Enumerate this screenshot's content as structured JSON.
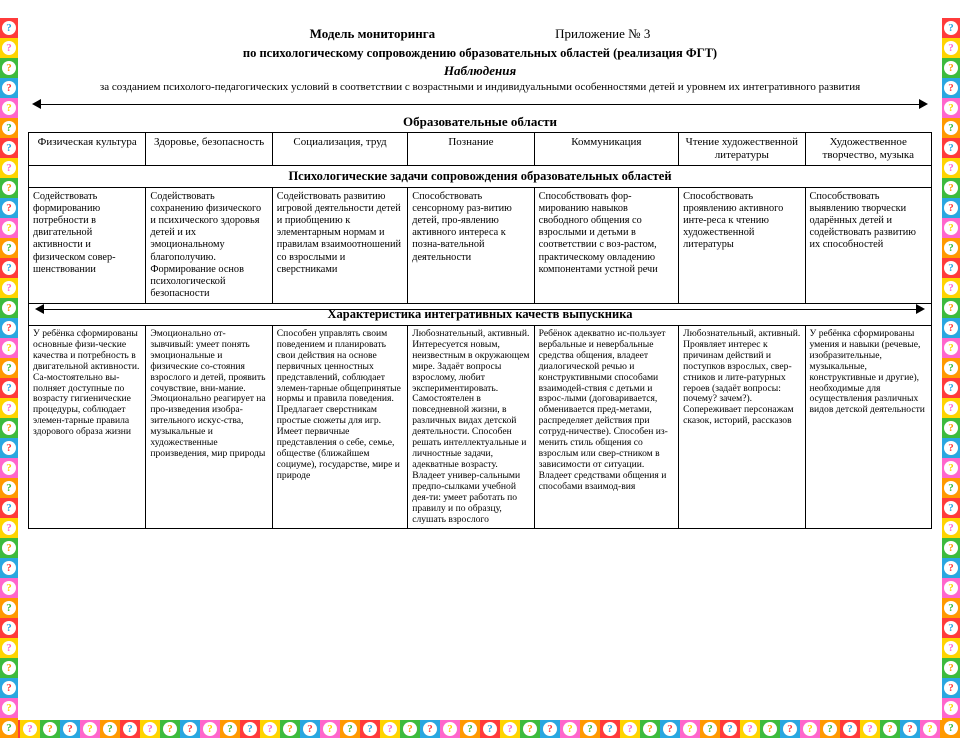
{
  "border": {
    "colors": [
      "#ff3b3b",
      "#ffd400",
      "#3dbb3d",
      "#2aa7e0",
      "#ff66cc",
      "#ff9900"
    ],
    "glyph": "?"
  },
  "header": {
    "title": "Модель мониторинга",
    "appendix": "Приложение № 3",
    "subtitle": "по психологическому сопровождению образовательных областей (реализация ФГТ)",
    "observation": "Наблюдения",
    "desc": "за созданием психолого-педагогических условий в соответствии с возрастными и индивидуальными особенностями детей и уровнем их интегративного развития"
  },
  "sections": {
    "areas": "Образовательные области",
    "tasks": "Психологические задачи сопровождения образовательных областей",
    "qualities": "Характеристика интегративных качеств выпускника"
  },
  "columns": [
    "Физическая культура",
    "Здоровье, безопасность",
    "Социализация, труд",
    "Познание",
    "Коммуникация",
    "Чтение художественной литературы",
    "Художественное творчество, музыка"
  ],
  "tasks": [
    "Содействовать формированию потребности в двигательной активности и физическом совер-шенствовании",
    "Содействовать сохранению физического и психического здоровья детей и их эмоциональному благополучию. Формирование основ психологической безопасности",
    "Содействовать развитию игровой деятельности детей и приобщению к элементарным нормам и правилам взаимоотношений со взрослыми и сверстниками",
    "Способствовать сенсорному раз-витию детей, про-явлению активного интереса к позна-вательной деятельности",
    "Способствовать фор-мированию навыков свободного общения со взрослыми и детьми в соответствии с воз-растом, практическому овладению компонентами устной речи",
    "Способствовать проявлению активного инте-реса к чтению художественной литературы",
    "Способствовать выявлению творчески одарённых детей и содействовать развитию их способностей"
  ],
  "qualities": [
    "У ребёнка сформированы основные физи-ческие качества и потребность в двигательной активности. Са-мостоятельно вы-полняет доступные по возрасту гигиенические процедуры, соблюдает элемен-тарные правила здорового образа жизни",
    "Эмоционально от-зывчивый: умеет понять эмоциональные и физические со-стояния взрослого и детей, проявить сочувствие, вни-мание. Эмоционально реагирует на про-изведения изобра-зительного искус-ства, музыкальные и художественные произведения, мир природы",
    "Способен управлять своим поведением и планировать свои действия на основе первичных ценностных представлений, соблюдает элемен-тарные общепринятые нормы и правила поведения. Предлагает сверстникам простые сюжеты для игр. Имеет первичные представления о себе, семье, обществе (ближайшем социуме), государстве, мире и природе",
    "Любознательный, активный. Интересуется новым, неизвестным в окружающем мире. Задаёт вопросы взрослому, любит экспериментировать. Самостоятелен в повседневной жизни, в различных видах детской деятельности. Способен решать интеллектуальные и личностные задачи, адекватные возрасту. Владеет универ-сальными предпо-сылками учебной дея-ти: умеет работать по правилу и по образцу, слушать взрослого",
    "Ребёнок адекватно ис-пользует вербальные и невербальные средства общения, владеет диалогической речью и конструктивными способами взаимодей-ствия с детьми и взрос-лыми (договаривается, обменивается пред-метами, распределяет действия при сотруд-ничестве). Способен из-менить стиль общения со взрослым или свер-стником в зависимости от ситуации. Владеет средствами общения и способами взаимод-вия",
    "Любознательный, активный. Проявляет интерес к причинам действий и поступков взрослых, свер-стников и лите-ратурных героев (задаёт вопросы: почему? зачем?). Сопереживает персонажам сказок, историй, рассказов",
    "У ребёнка сформированы умения и навыки (речевые, изобразительные, музыкальные, конструктивные и другие), необходимые для осуществления различных видов детской деятельности"
  ]
}
